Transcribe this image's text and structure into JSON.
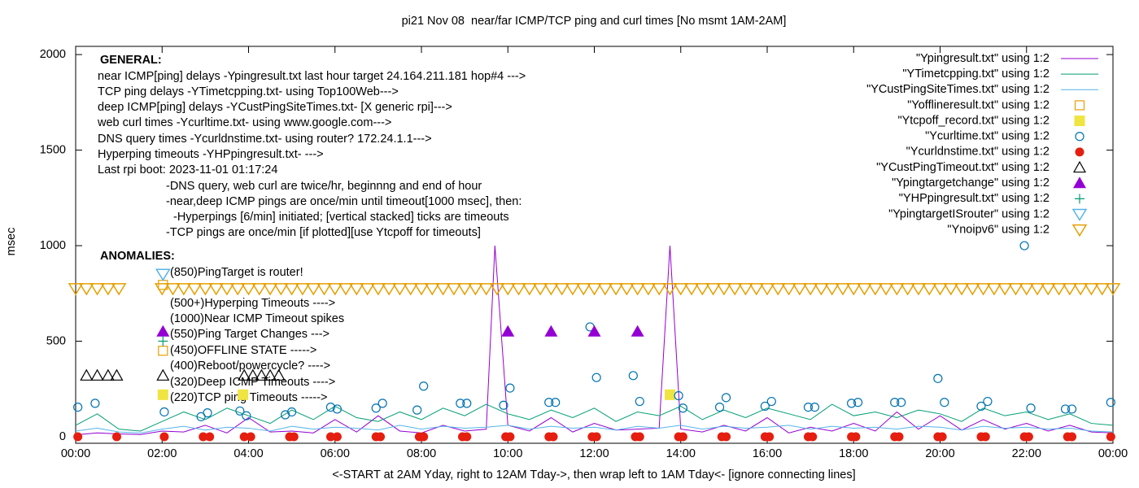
{
  "chart_data": {
    "type": "line",
    "title": "pi21 Nov 08  near/far ICMP/TCP ping and curl times [No msmt 1AM-2AM]",
    "x_label": "<-START at 2AM Yday, right to 12AM Tday->, then wrap left to 1AM Tday<- [ignore connecting lines]",
    "y_label": "msec",
    "xlim": [
      0,
      24
    ],
    "ylim": [
      -34,
      2043
    ],
    "xticks": [
      {
        "value": 0,
        "label": "00:00"
      },
      {
        "value": 2,
        "label": "02:00"
      },
      {
        "value": 4,
        "label": "04:00"
      },
      {
        "value": 6,
        "label": "06:00"
      },
      {
        "value": 8,
        "label": "08:00"
      },
      {
        "value": 10,
        "label": "10:00"
      },
      {
        "value": 12,
        "label": "12:00"
      },
      {
        "value": 14,
        "label": "14:00"
      },
      {
        "value": 16,
        "label": "16:00"
      },
      {
        "value": 18,
        "label": "18:00"
      },
      {
        "value": 20,
        "label": "20:00"
      },
      {
        "value": 22,
        "label": "22:00"
      },
      {
        "value": 24,
        "label": "00:00"
      }
    ],
    "yticks": [
      0,
      500,
      1000,
      1500,
      2000
    ],
    "grid": false,
    "legend": "top right",
    "annotations": [
      "GENERAL:",
      "near ICMP[ping] delays -Ypingresult.txt last hour target 24.164.211.181 hop#4 --->",
      "TCP ping delays -YTimetcpping.txt- using Top100Web--->",
      "deep ICMP[ping] delays -YCustPingSiteTimes.txt- [X generic rpi]--->",
      "web curl times -Ycurltime.txt- using www.google.com--->",
      "DNS query times -Ycurldnstime.txt- using router? 172.24.1.1--->",
      "Hyperping timeouts -YHPpingresult.txt- --->",
      "Last rpi boot: 2023-11-01 01:17:24",
      "-DNS query, web curl are twice/hr, beginnng and end of hour",
      "-near,deep ICMP pings are once/min until timeout[1000 msec], then:",
      "-Hyperpings [6/min] initiated; [vertical stacked] ticks are timeouts",
      "-TCP pings are once/min [if plotted][use Ytcpoff for timeouts]",
      "ANOMALIES:",
      "(850)PingTarget is router!",
      "(500+)Hyperping Timeouts ---->",
      "(1000)Near ICMP Timeout spikes",
      "(550)Ping Target Changes --->",
      "(450)OFFLINE STATE ----->",
      "(400)Reboot/powercycle? ---->",
      "(320)Deep ICMP Timeouts ---->",
      "(220)TCP ping Timeouts ----->"
    ],
    "series": [
      {
        "name": "\"Ypingresult.txt\" using 1:2",
        "color": "#9400d3",
        "marker": "line",
        "x": [
          0,
          0.5,
          1,
          1.5,
          2,
          2.5,
          3,
          3.5,
          4,
          4.5,
          5,
          5.5,
          6,
          6.5,
          7,
          7.5,
          8,
          8.5,
          9,
          9.5,
          9.7,
          10,
          10.5,
          11,
          11.5,
          12,
          12.5,
          13,
          13.5,
          13.75,
          14,
          14.5,
          15,
          15.5,
          16,
          16.5,
          17,
          17.5,
          18,
          18.5,
          19,
          19.5,
          20,
          20.5,
          21,
          21.5,
          22,
          22.5,
          23,
          23.5,
          24
        ],
        "values": [
          10,
          20,
          15,
          12,
          30,
          25,
          60,
          20,
          100,
          25,
          30,
          20,
          90,
          25,
          110,
          30,
          20,
          60,
          30,
          40,
          1000,
          60,
          30,
          100,
          25,
          70,
          35,
          40,
          45,
          1000,
          40,
          25,
          60,
          30,
          100,
          20,
          50,
          30,
          70,
          30,
          130,
          40,
          110,
          35,
          90,
          40,
          70,
          30,
          60,
          25,
          20
        ]
      },
      {
        "name": "\"YTimetcpping.txt\" using 1:2",
        "color": "#009e73",
        "marker": "line",
        "x": [
          0,
          0.5,
          1,
          1.5,
          2,
          2.5,
          3,
          3.5,
          4,
          4.5,
          5,
          5.5,
          6,
          6.5,
          7,
          7.5,
          8,
          8.5,
          9,
          9.5,
          10,
          10.5,
          11,
          11.5,
          12,
          12.5,
          13,
          13.5,
          14,
          14.5,
          15,
          15.5,
          16,
          16.5,
          17,
          17.5,
          18,
          18.5,
          19,
          19.5,
          20,
          20.5,
          21,
          21.5,
          22,
          22.5,
          23,
          23.5,
          24
        ],
        "values": [
          60,
          120,
          40,
          30,
          80,
          130,
          90,
          150,
          110,
          70,
          140,
          90,
          160,
          100,
          80,
          130,
          90,
          150,
          110,
          170,
          120,
          90,
          140,
          100,
          150,
          80,
          130,
          110,
          160,
          90,
          140,
          100,
          150,
          120,
          90,
          170,
          110,
          130,
          100,
          140,
          120,
          80,
          150,
          110,
          130,
          90,
          120,
          70,
          60
        ]
      },
      {
        "name": "\"YCustPingSiteTimes.txt\" using 1:2",
        "color": "#56b4e9",
        "marker": "line",
        "x": [
          0,
          0.5,
          1,
          1.5,
          2,
          2.5,
          3,
          3.5,
          4,
          4.5,
          5,
          5.5,
          6,
          6.5,
          7,
          7.5,
          8,
          8.5,
          9,
          9.5,
          10,
          10.5,
          11,
          11.5,
          12,
          12.5,
          13,
          13.5,
          14,
          14.5,
          15,
          15.5,
          16,
          16.5,
          17,
          17.5,
          18,
          18.5,
          19,
          19.5,
          20,
          20.5,
          21,
          21.5,
          22,
          22.5,
          23,
          23.5,
          24
        ],
        "values": [
          30,
          45,
          25,
          20,
          40,
          55,
          35,
          50,
          45,
          30,
          55,
          40,
          50,
          45,
          35,
          60,
          40,
          55,
          45,
          50,
          60,
          40,
          55,
          45,
          50,
          35,
          55,
          45,
          60,
          40,
          55,
          45,
          50,
          60,
          40,
          55,
          45,
          50,
          40,
          55,
          50,
          35,
          55,
          45,
          50,
          40,
          45,
          30,
          25
        ]
      },
      {
        "name": "\"Yofflineresult.txt\" using 1:2",
        "color": "#e69f00",
        "marker": "square-open",
        "x": [
          2.02,
          2.02
        ],
        "values": [
          450,
          795
        ]
      },
      {
        "name": "\"Ytcpoff_record.txt\" using 1:2",
        "color": "#f0e442",
        "marker": "square",
        "x": [
          2.02,
          3.87,
          13.75
        ],
        "values": [
          220,
          220,
          220
        ]
      },
      {
        "name": "\"Ycurltime.txt\" using 1:2",
        "color": "#0072b2",
        "marker": "circle-open",
        "x": [
          0.05,
          0.45,
          2.05,
          2.9,
          3.05,
          3.8,
          3.95,
          4.85,
          5.0,
          5.9,
          6.05,
          6.95,
          7.1,
          7.9,
          8.05,
          8.9,
          9.05,
          9.9,
          10.05,
          10.95,
          11.1,
          11.9,
          12.05,
          12.9,
          13.05,
          13.95,
          14.05,
          14.9,
          15.05,
          15.95,
          16.1,
          16.95,
          17.1,
          17.95,
          18.1,
          18.95,
          19.1,
          19.95,
          20.1,
          20.95,
          21.1,
          21.95,
          22.1,
          22.9,
          23.05,
          23.95
        ],
        "values": [
          155,
          175,
          130,
          105,
          125,
          135,
          110,
          115,
          130,
          155,
          145,
          150,
          175,
          140,
          265,
          175,
          175,
          165,
          255,
          180,
          180,
          575,
          310,
          320,
          185,
          215,
          150,
          155,
          205,
          160,
          185,
          155,
          155,
          175,
          180,
          180,
          180,
          305,
          180,
          160,
          185,
          1000,
          150,
          145,
          145,
          180
        ]
      },
      {
        "name": "\"Ycurldnstime.txt\" using 1:2",
        "color": "#e51e10",
        "marker": "circle",
        "x": [
          0.05,
          0.95,
          2.05,
          2.95,
          3.1,
          3.9,
          4.05,
          4.95,
          5.05,
          5.9,
          6.05,
          6.95,
          7.05,
          7.95,
          8.05,
          8.95,
          9.05,
          9.95,
          10.05,
          10.95,
          11.05,
          11.95,
          12.05,
          12.95,
          13.05,
          13.95,
          14.05,
          14.95,
          15.05,
          15.95,
          16.05,
          16.95,
          17.05,
          17.95,
          18.05,
          18.95,
          19.05,
          19.95,
          20.05,
          20.95,
          21.05,
          21.95,
          22.05,
          22.95,
          23.05,
          23.95
        ],
        "values": [
          0,
          0,
          0,
          0,
          0,
          0,
          0,
          0,
          0,
          0,
          0,
          0,
          0,
          0,
          0,
          0,
          0,
          0,
          0,
          0,
          0,
          0,
          0,
          0,
          0,
          0,
          0,
          0,
          0,
          0,
          0,
          0,
          0,
          0,
          0,
          0,
          0,
          0,
          0,
          0,
          0,
          0,
          0,
          0,
          0,
          0
        ]
      },
      {
        "name": "\"YCustPingTimeout.txt\" using 1:2",
        "color": "#000000",
        "marker": "triangle-open",
        "x": [
          0.25,
          0.5,
          0.75,
          0.95,
          2.02,
          3.9,
          4.1,
          4.3,
          4.5,
          4.7
        ],
        "values": [
          320,
          320,
          320,
          320,
          320,
          320,
          320,
          320,
          320,
          320
        ]
      },
      {
        "name": "\"Ypingtargetchange\" using 1:2",
        "color": "#9400d3",
        "marker": "triangle",
        "x": [
          2.02,
          10.0,
          11.0,
          12.0,
          13.0
        ],
        "values": [
          550,
          550,
          550,
          550,
          550
        ]
      },
      {
        "name": "\"YHPpingresult.txt\" using 1:2",
        "color": "#009e73",
        "marker": "plus",
        "x": [
          2.02
        ],
        "values": [
          500
        ]
      },
      {
        "name": "\"YpingtargetISrouter\" using 1:2",
        "color": "#56b4e9",
        "marker": "triangle-down-open",
        "x": [
          2.02
        ],
        "values": [
          850
        ]
      },
      {
        "name": "\"Ynoipv6\" using 1:2",
        "color": "#e69f00",
        "marker": "triangle-down-open",
        "x": [
          0,
          0.25,
          0.5,
          0.75,
          1.0,
          2.0,
          2.25,
          2.5,
          2.75,
          3.0,
          3.25,
          3.5,
          3.75,
          4.0,
          4.25,
          4.5,
          4.75,
          5.0,
          5.25,
          5.5,
          5.75,
          6.0,
          6.25,
          6.5,
          6.75,
          7.0,
          7.25,
          7.5,
          7.75,
          8.0,
          8.25,
          8.5,
          8.75,
          9.0,
          9.25,
          9.5,
          9.75,
          10.0,
          10.25,
          10.5,
          10.75,
          11.0,
          11.25,
          11.5,
          11.75,
          12.0,
          12.25,
          12.5,
          12.75,
          13.0,
          13.25,
          13.5,
          13.75,
          14.0,
          14.25,
          14.5,
          14.75,
          15.0,
          15.25,
          15.5,
          15.75,
          16.0,
          16.25,
          16.5,
          16.75,
          17.0,
          17.25,
          17.5,
          17.75,
          18.0,
          18.25,
          18.5,
          18.75,
          19.0,
          19.25,
          19.5,
          19.75,
          20.0,
          20.25,
          20.5,
          20.75,
          21.0,
          21.25,
          21.5,
          21.75,
          22.0,
          22.25,
          22.5,
          22.75,
          23.0,
          23.25,
          23.5,
          23.75,
          24.0
        ],
        "values": [
          775,
          775,
          775,
          775,
          775,
          775,
          775,
          775,
          775,
          775,
          775,
          775,
          775,
          775,
          775,
          775,
          775,
          775,
          775,
          775,
          775,
          775,
          775,
          775,
          775,
          775,
          775,
          775,
          775,
          775,
          775,
          775,
          775,
          775,
          775,
          775,
          775,
          775,
          775,
          775,
          775,
          775,
          775,
          775,
          775,
          775,
          775,
          775,
          775,
          775,
          775,
          775,
          775,
          775,
          775,
          775,
          775,
          775,
          775,
          775,
          775,
          775,
          775,
          775,
          775,
          775,
          775,
          775,
          775,
          775,
          775,
          775,
          775,
          775,
          775,
          775,
          775,
          775,
          775,
          775,
          775,
          775,
          775,
          775,
          775,
          775,
          775,
          775,
          775,
          775,
          775,
          775,
          775,
          775
        ]
      }
    ]
  }
}
